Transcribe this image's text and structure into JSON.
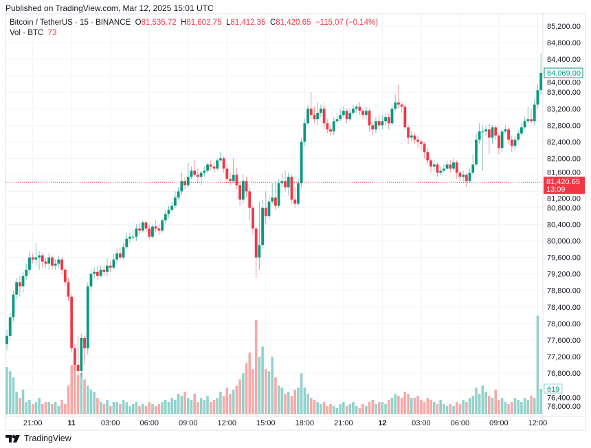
{
  "header": {
    "published": "Published on TradingView.com, Mar 12, 2025 15:01 UTC"
  },
  "legend": {
    "symbol": "Bitcoin / TetherUS · 15 · BINANCE",
    "o_label": "O",
    "o": "81,535.72",
    "h_label": "H",
    "h": "81,602.75",
    "l_label": "L",
    "l": "81,412.35",
    "c_label": "C",
    "c": "81,420.65",
    "change": "−115.07 (−0.14%)",
    "vol_label": "Vol · BTC",
    "vol": "73"
  },
  "footer": {
    "brand": "TradingView"
  },
  "colors": {
    "up": "#089981",
    "down": "#f23645",
    "up_volume": "#92d2cc",
    "down_volume": "#f7a9a7",
    "grid": "#f0f3fa"
  },
  "chart_data": {
    "type": "candlestick",
    "ylim": [
      75800,
      85400
    ],
    "yticks": [
      76000,
      76400,
      76800,
      77200,
      77600,
      78000,
      78400,
      78800,
      79200,
      79600,
      80000,
      80400,
      80800,
      81200,
      81600,
      82000,
      82400,
      82800,
      83200,
      83600,
      84000,
      84400,
      84800,
      85200
    ],
    "ytick_labels": [
      "76,000.00",
      "76,400.00",
      "76,800.00",
      "77,200.00",
      "77,600.00",
      "78,000.00",
      "78,400.00",
      "78,800.00",
      "79,200.00",
      "79,600.00",
      "80,000.00",
      "80,400.00",
      "80,800.00",
      "81,200.00",
      "81,600.00",
      "82,000.00",
      "82,400.00",
      "82,800.00",
      "83,200.00",
      "83,600.00",
      "84,000.00",
      "84,400.00",
      "84,800.00",
      "85,200.00"
    ],
    "xticks": [
      {
        "candle": 8,
        "label": "21:00",
        "bold": false
      },
      {
        "candle": 20,
        "label": "11",
        "bold": true
      },
      {
        "candle": 32,
        "label": "03:00",
        "bold": false
      },
      {
        "candle": 44,
        "label": "06:00",
        "bold": false
      },
      {
        "candle": 56,
        "label": "09:00",
        "bold": false
      },
      {
        "candle": 68,
        "label": "12:00",
        "bold": false
      },
      {
        "candle": 80,
        "label": "15:00",
        "bold": false
      },
      {
        "candle": 92,
        "label": "18:00",
        "bold": false
      },
      {
        "candle": 104,
        "label": "21:00",
        "bold": false
      },
      {
        "candle": 116,
        "label": "12",
        "bold": true
      },
      {
        "candle": 128,
        "label": "03:00",
        "bold": false
      },
      {
        "candle": 140,
        "label": "06:00",
        "bold": false
      },
      {
        "candle": 152,
        "label": "09:00",
        "bold": false
      },
      {
        "candle": 164,
        "label": "12:00",
        "bold": false
      }
    ],
    "last_price": {
      "value": 84069.0,
      "label": "84,069.00"
    },
    "crosshair_price": {
      "value": 81420.65,
      "label": "81,420.65",
      "countdown": "13:09"
    },
    "last_volume": {
      "value": 619,
      "label": "619"
    },
    "volume_max": 2600,
    "open": [
      77500,
      77700,
      78150,
      78700,
      79000,
      78900,
      79150,
      79300,
      79600,
      79550,
      79600,
      79650,
      79500,
      79450,
      79600,
      79400,
      79450,
      79550,
      79300,
      79000,
      78650,
      77400,
      77000,
      76850,
      77650,
      77400,
      78900,
      79200,
      79250,
      79150,
      79300,
      79250,
      79400,
      79350,
      79550,
      79700,
      79600,
      79850,
      80050,
      80100,
      80100,
      80300,
      80250,
      80450,
      80300,
      80100,
      80350,
      80300,
      80250,
      80500,
      80650,
      80750,
      80850,
      81050,
      81200,
      81450,
      81350,
      81550,
      81700,
      81600,
      81550,
      81650,
      81700,
      81850,
      81800,
      81750,
      81950,
      82000,
      81750,
      81500,
      81450,
      81600,
      81350,
      81000,
      81450,
      81200,
      80800,
      80300,
      79600,
      79900,
      80800,
      80600,
      80950,
      81050,
      80850,
      81400,
      81450,
      81300,
      81550,
      81000,
      80900,
      81400,
      82400,
      82850,
      83200,
      83050,
      82950,
      83100,
      83200,
      82850,
      82700,
      82650,
      82900,
      82950,
      83050,
      83150,
      82950,
      83100,
      83200,
      83250,
      83150,
      83050,
      83150,
      82800,
      82700,
      82900,
      82800,
      82900,
      83000,
      82850,
      83200,
      83350,
      83300,
      83250,
      82750,
      82500,
      82550,
      82450,
      82400,
      82350,
      82150,
      81950,
      81800,
      81850,
      81650,
      81700,
      81750,
      81850,
      81750,
      81900,
      81650,
      81550,
      81600,
      81450,
      81650,
      81850,
      82450,
      82650,
      82650,
      82700,
      82500,
      82750,
      82550,
      82250,
      82650,
      82700,
      82450,
      82300,
      82450,
      82600,
      82750,
      82900,
      82950,
      82900,
      83300,
      83650
    ],
    "high": [
      77850,
      78250,
      78800,
      79100,
      79150,
      79250,
      79450,
      79750,
      79700,
      79950,
      79750,
      79700,
      79600,
      79700,
      79650,
      79550,
      79650,
      79600,
      79350,
      79100,
      78700,
      77500,
      77700,
      77750,
      77700,
      79000,
      79300,
      79350,
      79400,
      79400,
      79400,
      79600,
      79500,
      79700,
      79800,
      79850,
      79950,
      80200,
      80200,
      80250,
      80400,
      80450,
      80500,
      80500,
      80400,
      80400,
      80500,
      80400,
      80550,
      80750,
      80850,
      80950,
      81200,
      81300,
      81650,
      81550,
      81900,
      81800,
      81950,
      81750,
      81700,
      81800,
      81900,
      81950,
      81900,
      82000,
      82150,
      82050,
      81850,
      81650,
      82000,
      81750,
      81450,
      81600,
      81550,
      81300,
      80850,
      80350,
      80950,
      81000,
      81200,
      81050,
      81400,
      81450,
      81500,
      81650,
      81700,
      81650,
      81600,
      81300,
      81500,
      82500,
      82950,
      83300,
      83600,
      83250,
      83350,
      83300,
      83350,
      82950,
      82800,
      83000,
      83100,
      83200,
      83250,
      83200,
      83200,
      83300,
      83300,
      83350,
      83200,
      83250,
      83200,
      82900,
      83000,
      83050,
      83050,
      83100,
      83100,
      83300,
      83550,
      83800,
      83350,
      83300,
      82800,
      82650,
      82600,
      82550,
      82450,
      82400,
      82250,
      82000,
      81950,
      81900,
      81800,
      81850,
      81950,
      81950,
      82000,
      81950,
      81700,
      81700,
      81650,
      81750,
      82100,
      82600,
      82850,
      82800,
      82800,
      82850,
      82800,
      82800,
      82600,
      82700,
      82800,
      82750,
      82550,
      82550,
      82700,
      82850,
      83000,
      83250,
      83200,
      83450,
      83800,
      84540
    ],
    "low": [
      77350,
      77600,
      78050,
      78600,
      78650,
      78750,
      79050,
      79200,
      79450,
      79400,
      79300,
      79350,
      79350,
      79300,
      79300,
      79300,
      79350,
      79200,
      78900,
      78550,
      77300,
      76850,
      76700,
      76700,
      77000,
      77250,
      78800,
      79100,
      79050,
      79100,
      79150,
      79150,
      79250,
      79300,
      79450,
      79550,
      79550,
      79800,
      79950,
      80000,
      80000,
      80150,
      80200,
      80200,
      80050,
      80050,
      80200,
      80150,
      80200,
      80400,
      80550,
      80700,
      80800,
      81000,
      81100,
      81250,
      81300,
      81500,
      81550,
      81400,
      81350,
      81550,
      81650,
      81700,
      81650,
      81700,
      81900,
      81650,
      81400,
      81350,
      81400,
      81250,
      80850,
      80900,
      81050,
      80500,
      80150,
      79100,
      79300,
      79800,
      80400,
      80500,
      80900,
      80750,
      80800,
      81300,
      81200,
      81100,
      80900,
      80800,
      80850,
      81300,
      82300,
      82800,
      82950,
      82850,
      82800,
      83000,
      82700,
      82600,
      82550,
      82550,
      82850,
      82900,
      83000,
      82850,
      82900,
      83050,
      83100,
      83050,
      82950,
      82950,
      82650,
      82550,
      82600,
      82700,
      82700,
      82800,
      82700,
      82800,
      83150,
      83200,
      83100,
      82700,
      82350,
      82400,
      82350,
      82250,
      82200,
      82000,
      81850,
      81650,
      81700,
      81550,
      81600,
      81650,
      81700,
      81650,
      81700,
      81500,
      81450,
      81450,
      81300,
      81400,
      81600,
      81800,
      82350,
      81700,
      82550,
      82100,
      82350,
      82450,
      82100,
      82150,
      82600,
      82350,
      82150,
      82200,
      82400,
      82550,
      82700,
      82850,
      82850,
      82800,
      83200,
      83550
    ],
    "close": [
      77700,
      78150,
      78700,
      79000,
      78900,
      79150,
      79300,
      79600,
      79550,
      79600,
      79650,
      79500,
      79450,
      79600,
      79400,
      79450,
      79550,
      79300,
      79000,
      78650,
      77400,
      77000,
      76850,
      77650,
      77400,
      78900,
      79200,
      79250,
      79150,
      79300,
      79250,
      79400,
      79350,
      79550,
      79700,
      79600,
      79850,
      80050,
      80100,
      80100,
      80300,
      80250,
      80450,
      80300,
      80100,
      80350,
      80300,
      80250,
      80500,
      80650,
      80750,
      80850,
      81050,
      81200,
      81450,
      81350,
      81550,
      81700,
      81600,
      81550,
      81650,
      81700,
      81850,
      81800,
      81750,
      81950,
      82000,
      81750,
      81500,
      81450,
      81600,
      81350,
      81000,
      81450,
      81200,
      80800,
      80300,
      79600,
      79900,
      80800,
      80600,
      80950,
      81050,
      80850,
      81400,
      81450,
      81300,
      81550,
      81000,
      80900,
      81400,
      82400,
      82850,
      83200,
      83050,
      82950,
      83100,
      83200,
      82850,
      82700,
      82650,
      82900,
      82950,
      83050,
      83150,
      82950,
      83100,
      83200,
      83250,
      83150,
      83050,
      83150,
      82800,
      82700,
      82900,
      82800,
      82900,
      83000,
      82850,
      83200,
      83350,
      83300,
      83250,
      82750,
      82500,
      82550,
      82450,
      82400,
      82350,
      82150,
      81950,
      81800,
      81850,
      81650,
      81700,
      81750,
      81850,
      81750,
      81900,
      81650,
      81550,
      81600,
      81450,
      81650,
      81850,
      82450,
      82650,
      82650,
      82700,
      82500,
      82750,
      82550,
      82250,
      82650,
      82700,
      82450,
      82300,
      82450,
      82600,
      82750,
      82900,
      82950,
      82900,
      83300,
      83650,
      84069
    ],
    "volume": [
      1150,
      1050,
      900,
      550,
      400,
      600,
      300,
      350,
      250,
      300,
      400,
      250,
      300,
      300,
      250,
      300,
      200,
      350,
      250,
      700,
      1200,
      1250,
      950,
      1000,
      850,
      700,
      600,
      550,
      400,
      300,
      250,
      350,
      200,
      300,
      300,
      250,
      350,
      300,
      200,
      250,
      300,
      200,
      250,
      200,
      300,
      250,
      200,
      250,
      300,
      350,
      300,
      400,
      350,
      500,
      450,
      550,
      400,
      350,
      500,
      300,
      400,
      350,
      450,
      300,
      350,
      400,
      550,
      450,
      650,
      500,
      600,
      700,
      850,
      1000,
      1250,
      1500,
      1100,
      2300,
      1400,
      1650,
      1100,
      1050,
      1400,
      900,
      700,
      650,
      500,
      550,
      450,
      600,
      650,
      1000,
      650,
      500,
      400,
      350,
      300,
      250,
      300,
      200,
      250,
      200,
      150,
      250,
      300,
      200,
      250,
      300,
      200,
      150,
      250,
      200,
      300,
      350,
      250,
      300,
      300,
      250,
      350,
      400,
      500,
      450,
      400,
      550,
      500,
      400,
      400,
      450,
      350,
      300,
      400,
      350,
      300,
      250,
      350,
      250,
      200,
      250,
      200,
      300,
      250,
      350,
      300,
      400,
      450,
      650,
      500,
      700,
      550,
      450,
      400,
      600,
      350,
      400,
      300,
      250,
      300,
      400,
      350,
      300,
      400,
      350,
      450,
      400,
      2400,
      619
    ]
  }
}
